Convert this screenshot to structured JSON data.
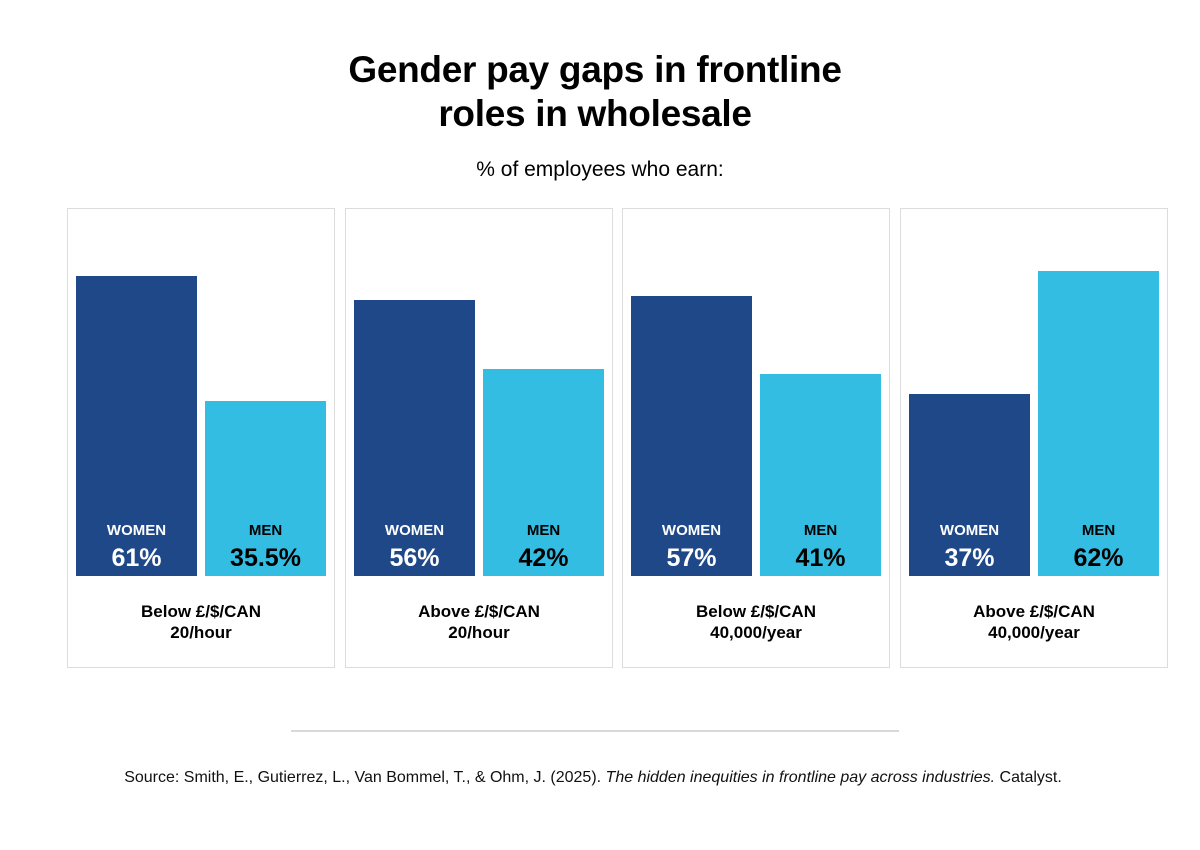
{
  "chart_data": {
    "type": "bar",
    "title": "Gender pay gaps in frontline roles in wholesale",
    "title_lines": [
      "Gender pay gaps in frontline",
      "roles in wholesale"
    ],
    "subtitle": "% of employees who earn:",
    "xlabel": "",
    "ylabel": "% of employees",
    "ylim": [
      0,
      70
    ],
    "grid": false,
    "categories": [
      "Below £/$/CAN 20/hour",
      "Above £/$/CAN 20/hour",
      "Below £/$/CAN 40,000/year",
      "Above £/$/CAN 40,000/year"
    ],
    "category_lines": [
      [
        "Below £/$/CAN",
        "20/hour"
      ],
      [
        "Above £/$/CAN",
        "20/hour"
      ],
      [
        "Below £/$/CAN",
        "40,000/year"
      ],
      [
        "Above £/$/CAN",
        "40,000/year"
      ]
    ],
    "series": [
      {
        "name": "WOMEN",
        "color": "#1f4889",
        "values": [
          61,
          56,
          57,
          37
        ],
        "labels": [
          "61%",
          "56%",
          "57%",
          "37%"
        ]
      },
      {
        "name": "MEN",
        "color": "#33bde2",
        "values": [
          35.5,
          42,
          41,
          62
        ],
        "labels": [
          "35.5%",
          "42%",
          "41%",
          "62%"
        ]
      }
    ]
  },
  "source": {
    "prefix": "Source: Smith, E., Gutierrez, L., Van Bommel, T., & Ohm, J. (2025). ",
    "italic": "The hidden inequities in frontline pay across industries.",
    "suffix": " Catalyst."
  }
}
